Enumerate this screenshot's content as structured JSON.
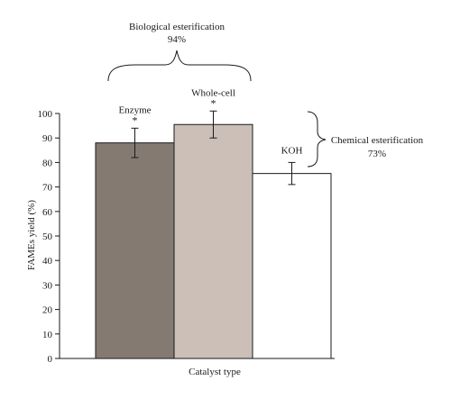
{
  "chart_data": {
    "type": "bar",
    "categories": [
      "Enzyme",
      "Whole-cell",
      "KOH"
    ],
    "values": [
      88,
      95.5,
      75.5
    ],
    "errors": [
      6,
      5.5,
      4.5
    ],
    "significance": [
      "*",
      "*",
      ""
    ],
    "bar_colors": [
      "#857a72",
      "#cbbfb8",
      "#ffffff"
    ],
    "xlabel": "Catalyst type",
    "ylabel": "FAMEs yield (%)",
    "ylim": [
      0,
      100
    ],
    "yticks": [
      0,
      10,
      20,
      30,
      40,
      50,
      60,
      70,
      80,
      90,
      100
    ],
    "grid": false,
    "legend": "none",
    "annotations": {
      "biological": {
        "label": "Biological esterification",
        "value": "94%"
      },
      "chemical": {
        "label": "Chemical esterification",
        "value": "73%"
      }
    }
  }
}
